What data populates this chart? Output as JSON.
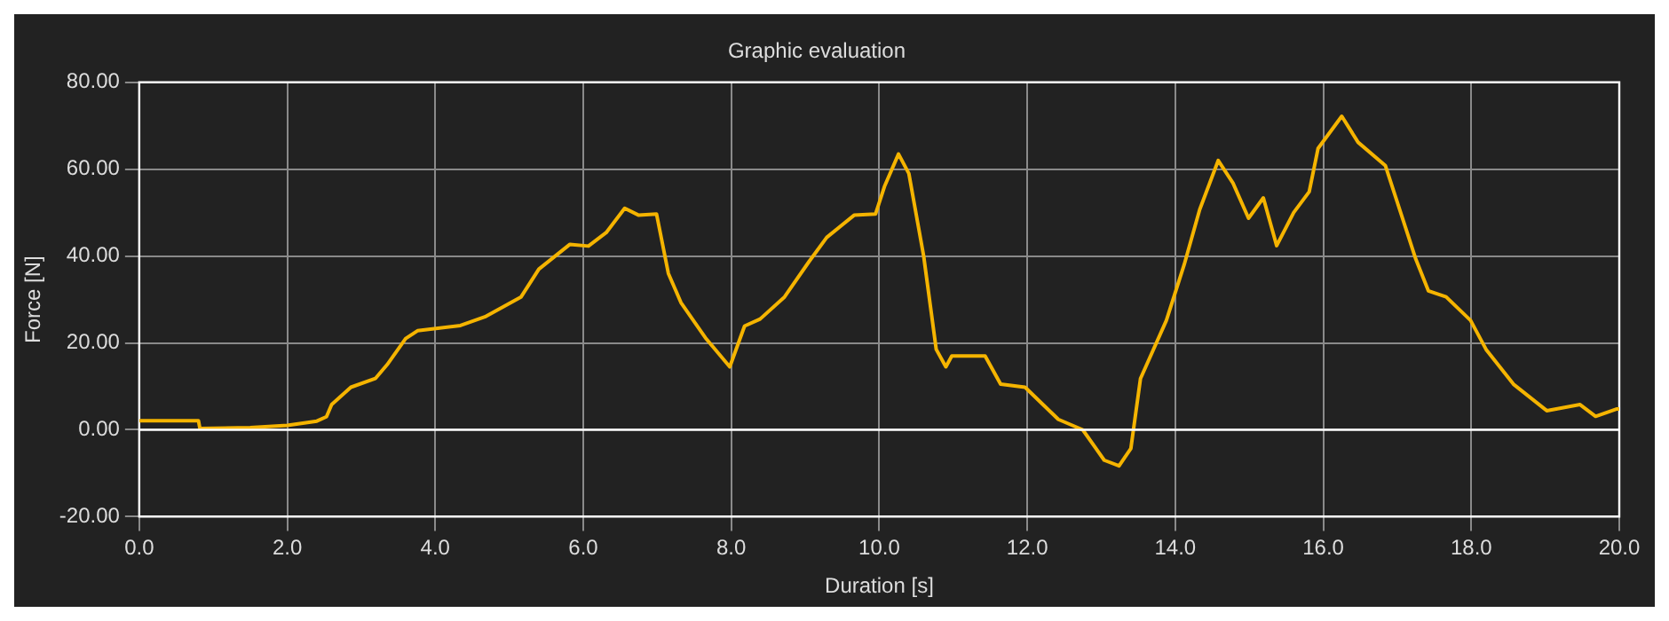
{
  "chart_data": {
    "type": "line",
    "title": "Graphic evaluation",
    "xlabel": "Duration [s]",
    "ylabel": "Force [N]",
    "series": [
      {
        "color": "#f5b400",
        "x": [
          0,
          0.8,
          0.82,
          1.5,
          2.0,
          2.4,
          2.53,
          2.6,
          2.86,
          3.19,
          3.35,
          3.6,
          3.76,
          4.34,
          4.67,
          5.16,
          5.4,
          5.82,
          6.07,
          6.31,
          6.56,
          6.75,
          6.99,
          7.15,
          7.32,
          7.65,
          7.98,
          8.18,
          8.39,
          8.72,
          9.05,
          9.29,
          9.66,
          9.95,
          10.07,
          10.26,
          10.4,
          10.6,
          10.77,
          10.9,
          10.98,
          11.43,
          11.64,
          11.97,
          12.42,
          12.75,
          13.04,
          13.24,
          13.4,
          13.53,
          13.88,
          14.12,
          14.33,
          14.58,
          14.78,
          14.99,
          15.19,
          15.37,
          15.6,
          15.81,
          15.93,
          16.25,
          16.47,
          16.84,
          17.25,
          17.42,
          17.66,
          17.99,
          18.2,
          18.57,
          19.02,
          19.47,
          19.68,
          19.97,
          20
        ],
        "values": [
          2.1,
          2.1,
          0.3,
          0.5,
          1,
          2,
          3,
          5.8,
          9.8,
          11.8,
          15,
          21,
          22.8,
          24,
          26,
          30.6,
          37,
          42.7,
          42.3,
          45.4,
          51,
          49.4,
          49.7,
          36,
          29.3,
          21.2,
          14.5,
          23.9,
          25.5,
          30.6,
          38.7,
          44.3,
          49.4,
          49.7,
          56,
          63.5,
          59,
          40,
          18.5,
          14.5,
          17,
          17,
          10.5,
          9.8,
          2.4,
          0,
          -7,
          -8.3,
          -4.3,
          11.8,
          25.2,
          38,
          50.7,
          62,
          56.8,
          48.7,
          53.4,
          42.4,
          50,
          54.8,
          64.8,
          72.2,
          66.2,
          60.8,
          39.3,
          32,
          30.6,
          25.2,
          18.5,
          10.5,
          4.4,
          5.8,
          3.1,
          4.8,
          4.8
        ]
      }
    ],
    "xlim": [
      0,
      20
    ],
    "xticks": [
      {
        "value": 0,
        "label": "0.0"
      },
      {
        "value": 2,
        "label": "2.0"
      },
      {
        "value": 4,
        "label": "4.0"
      },
      {
        "value": 6,
        "label": "6.0"
      },
      {
        "value": 8,
        "label": "8.0"
      },
      {
        "value": 10,
        "label": "10.0"
      },
      {
        "value": 12,
        "label": "12.0"
      },
      {
        "value": 14,
        "label": "14.0"
      },
      {
        "value": 16,
        "label": "16.0"
      },
      {
        "value": 18,
        "label": "18.0"
      },
      {
        "value": 20,
        "label": "20.0"
      }
    ],
    "ylim": [
      -20,
      80
    ],
    "yticks": [
      {
        "value": -20,
        "label": "-20.00"
      },
      {
        "value": 0,
        "label": "0.00"
      },
      {
        "value": 20,
        "label": "20.00"
      },
      {
        "value": 40,
        "label": "40.00"
      },
      {
        "value": 60,
        "label": "60.00"
      },
      {
        "value": 80,
        "label": "80.00"
      }
    ],
    "ref_lines": [
      {
        "axis": "y",
        "value": 0,
        "color": "#ffffff"
      }
    ],
    "grid": true,
    "legend": false,
    "marker": "none",
    "line_style": "solid"
  }
}
